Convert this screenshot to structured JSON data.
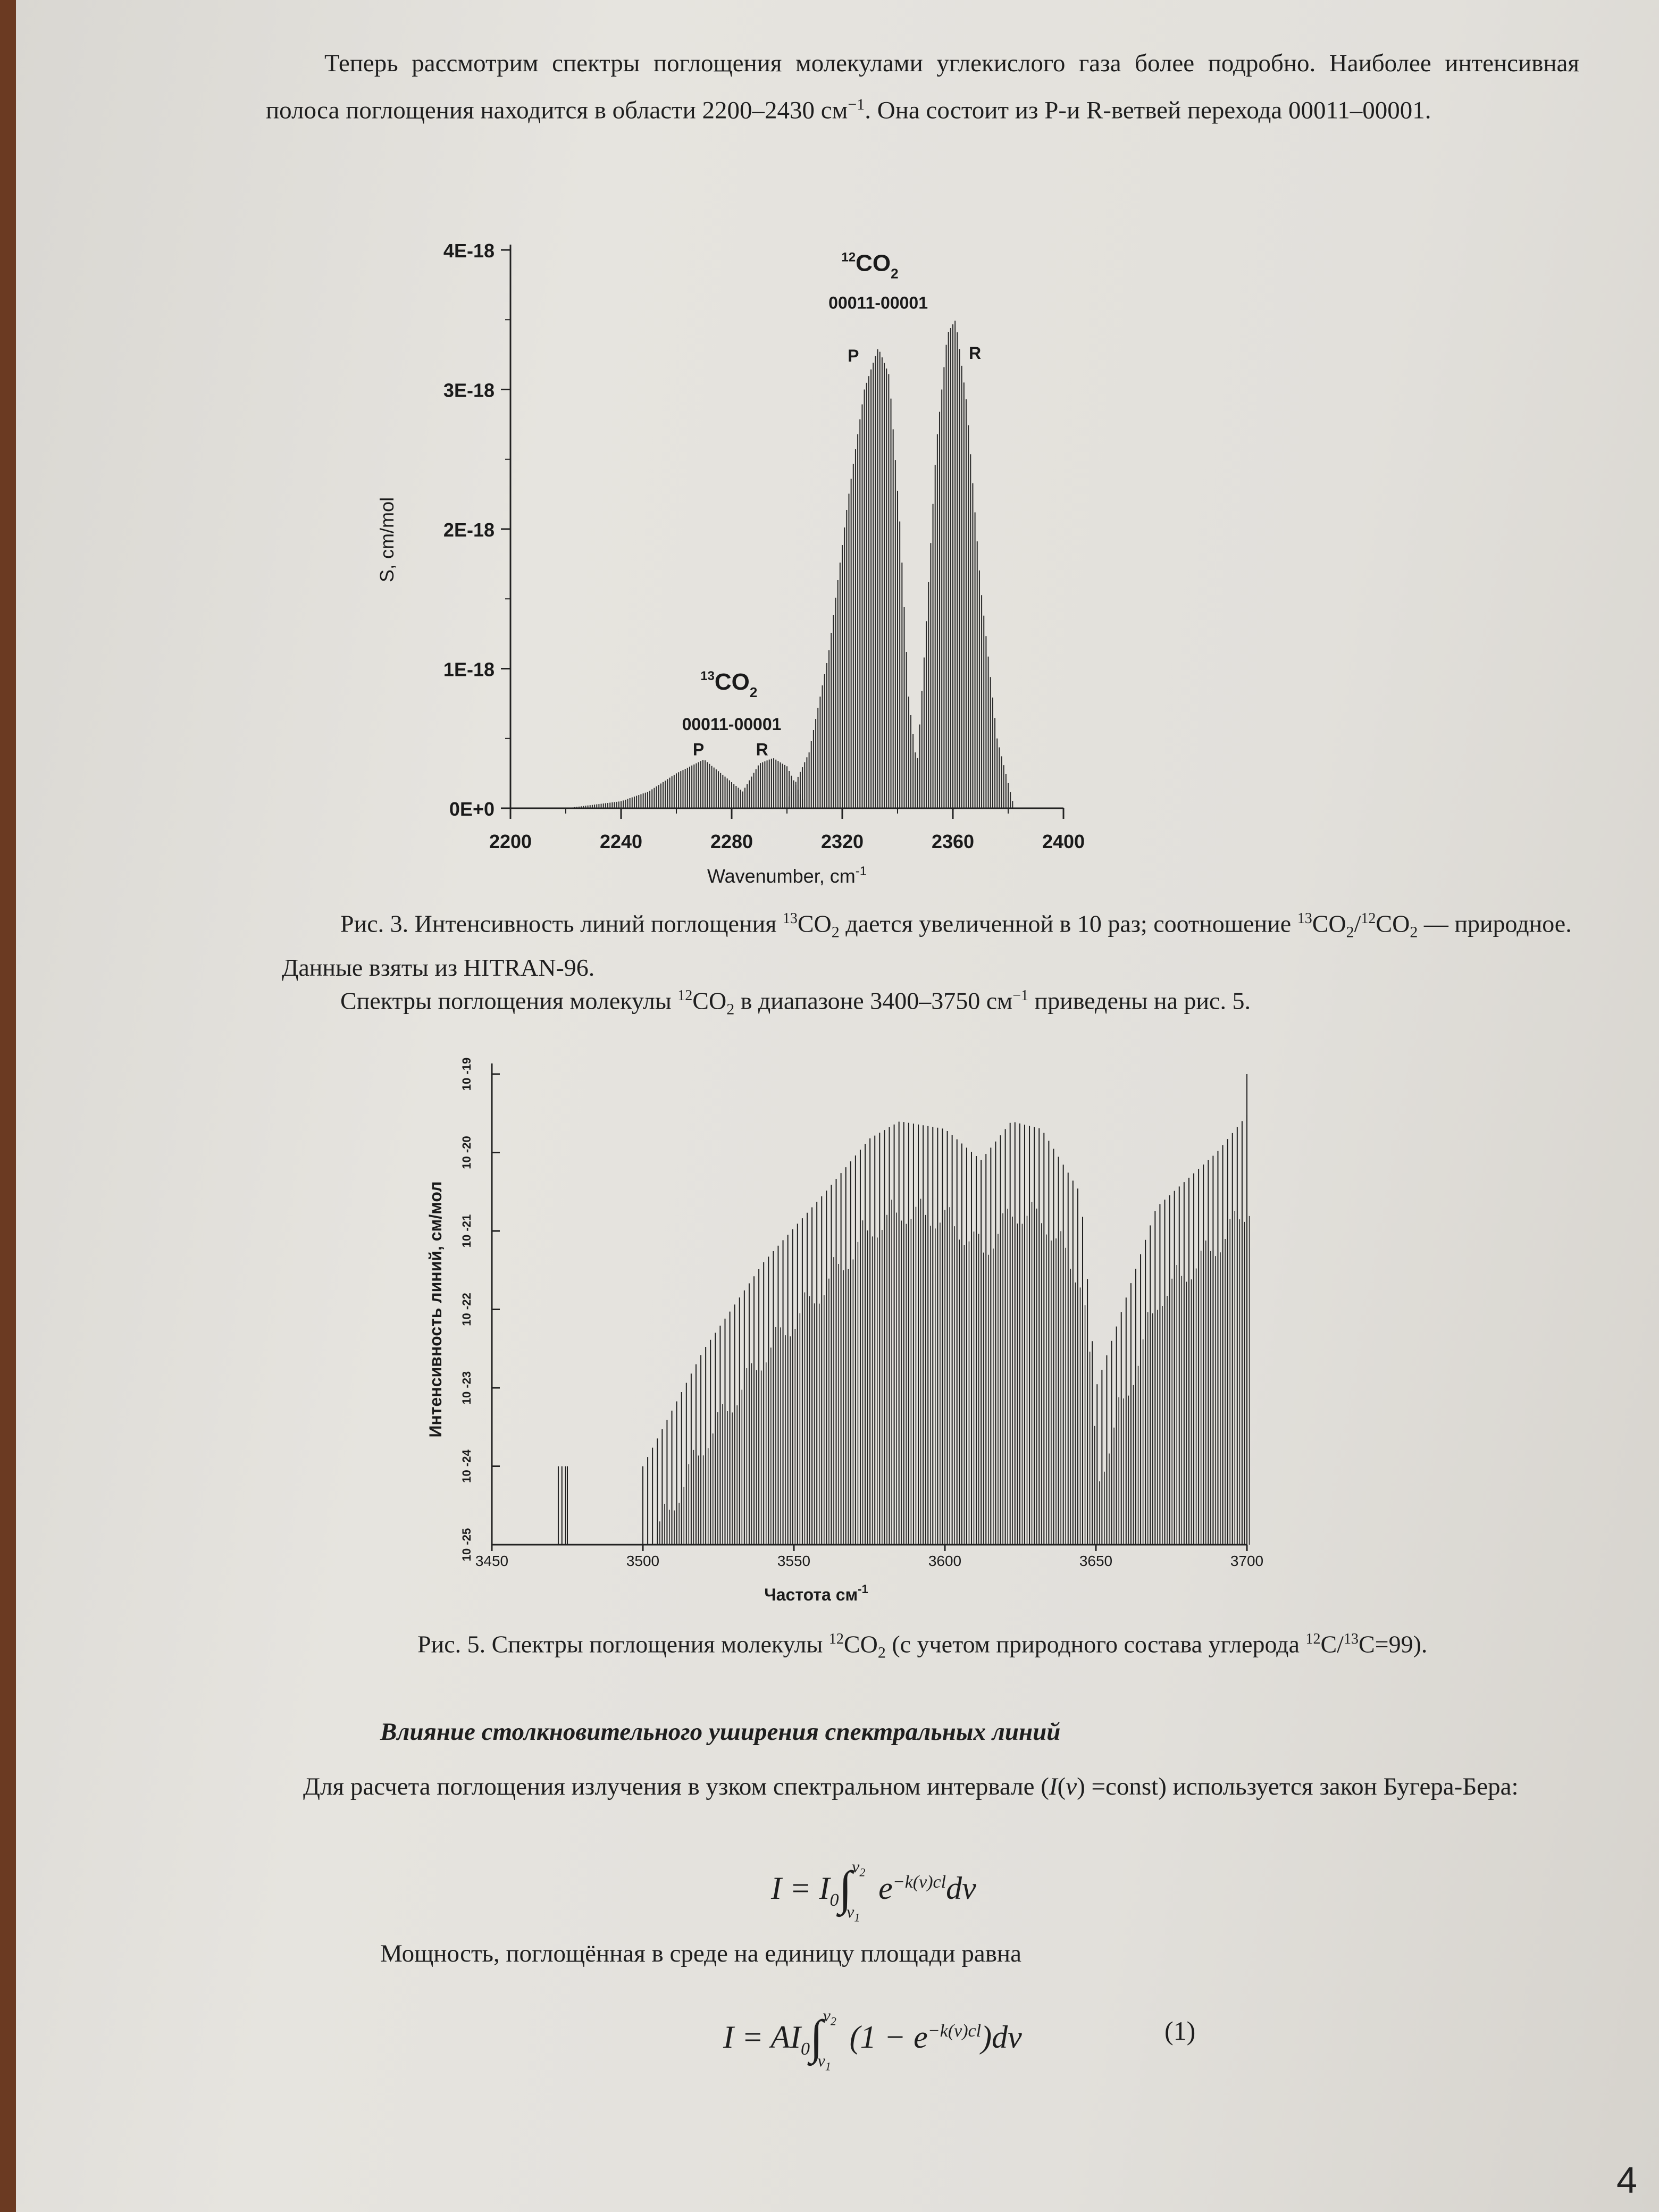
{
  "intro": {
    "pre": "Теперь рассмотрим спектры поглощения молекулами углекислого газа более подробно. Наиболее интенсивная полоса поглощения находится в области 2200–2430 см",
    "sup": "−1",
    "post": ". Она состоит из  P-и R-ветвей перехода 00011–00001."
  },
  "fig3_caption": {
    "p1": "Рис. 3. Интенсивность линий поглощения ",
    "s1": "13",
    "p2": "CO",
    "b1": "2",
    "p3": " дается увеличенной в 10 раз; соотношение ",
    "s2": "13",
    "p4": "CO",
    "b2": "2",
    "p5": "/",
    "s3": "12",
    "p6": "CO",
    "b3": "2",
    "p7": " — природное. Данные взяты из HITRAN-96."
  },
  "fig5_intro": {
    "p1": "Спектры поглощения молекулы ",
    "s1": "12",
    "p2": "CO",
    "b1": "2",
    "p3": "  в диапазоне 3400–3750 см",
    "s2": "−1",
    "p4": " приведены на рис. 5."
  },
  "fig5_caption": {
    "p1": "Рис. 5. Спектры поглощения молекулы ",
    "s1": "12",
    "p2": "CO",
    "b1": "2",
    "p3": " (с учетом природного состава углерода ",
    "s2": "12",
    "p4": "C/",
    "s3": "13",
    "p5": "C=99)."
  },
  "section_heading": "Влияние столкновительного уширения спектральных линий",
  "beer_para": {
    "p1": "Для расчета поглощения излучения в узком спектральном интервале (",
    "i1": "I",
    "p2": "(",
    "i2": "ν",
    "p3": ") =const) используется закон Бугера-Бера:"
  },
  "power_para": "Мощность, поглощённая в среде на единицу площади равна",
  "formula1": {
    "lhs": "I = I",
    "sub0": "0",
    "int": "∫",
    "up": "ν",
    "up_sub": "2",
    "lo": "ν",
    "lo_sub": "1",
    "e": "e",
    "exp": "−k(ν)cl",
    "tail": "dν"
  },
  "formula2": {
    "lhs": "I = AI",
    "sub0": "0",
    "int": "∫",
    "up": "ν",
    "up_sub": "2",
    "lo": "ν",
    "lo_sub": "1",
    "body": "(1 − e",
    "exp": "−k(ν)cl",
    "tail": ")dν",
    "number": "(1)"
  },
  "page_mark": "4",
  "chart_data": [
    {
      "type": "line",
      "title": "",
      "xlabel": "Wavenumber, cm",
      "xlabel_sup": "-1",
      "ylabel": "S,  cm/mol",
      "xlim": [
        2200,
        2400
      ],
      "ylim": [
        0,
        4e-18
      ],
      "x_ticks": [
        "2200",
        "2240",
        "2280",
        "2320",
        "2360",
        "2400"
      ],
      "y_ticks": [
        "0E+0",
        "1E-18",
        "2E-18",
        "3E-18",
        "4E-18"
      ],
      "series": [
        {
          "x": [
            2220,
            2240,
            2250,
            2260,
            2270,
            2278,
            2284,
            2290,
            2295,
            2300,
            2306
          ],
          "y": [
            0.0,
            5e-20,
            1.2e-19,
            2.5e-19,
            3.5e-19,
            2.2e-19,
            1.2e-19,
            3.2e-19,
            3.6e-19,
            3e-19,
            5e-20
          ]
        },
        {
          "x": [
            2300,
            2308,
            2315,
            2322,
            2328,
            2333,
            2337,
            2341,
            2344,
            2347,
            2350,
            2354,
            2358,
            2361,
            2365,
            2370,
            2376,
            2382
          ],
          "y": [
            5e-20,
            4e-19,
            1.1e-18,
            2.2e-18,
            3e-18,
            3.3e-18,
            3.1e-18,
            2e-18,
            8e-19,
            3e-19,
            1.2e-18,
            2.6e-18,
            3.4e-18,
            3.5e-18,
            2.9e-18,
            1.6e-18,
            5e-19,
            2e-20
          ]
        }
      ],
      "annotations": [
        {
          "text": "CO",
          "sup": "12",
          "sub": "2",
          "x": 2330,
          "y": 3.85e-18
        },
        {
          "text": "00011-00001",
          "x": 2333,
          "y": 3.58e-18
        },
        {
          "text": "P",
          "x": 2324,
          "y": 3.2e-18
        },
        {
          "text": "R",
          "x": 2368,
          "y": 3.22e-18
        },
        {
          "text": "CO",
          "sup": "13",
          "sub": "2",
          "x": 2279,
          "y": 8.5e-19
        },
        {
          "text": "00011-00001",
          "x": 2280,
          "y": 5.6e-19
        },
        {
          "text": "P",
          "x": 2268,
          "y": 3.8e-19
        },
        {
          "text": "R",
          "x": 2291,
          "y": 3.8e-19
        }
      ]
    },
    {
      "type": "line",
      "title": "",
      "xlabel": "Частота см",
      "xlabel_sup": "-1",
      "ylabel": "Интенсивность линий, см/мол",
      "y_scale": "log",
      "xlim": [
        3450,
        3700
      ],
      "ylim": [
        1e-25,
        1e-19
      ],
      "x_ticks": [
        "3450",
        "3500",
        "3550",
        "3600",
        "3650",
        "3700"
      ],
      "y_ticks": [
        "10 -25",
        "10 -24",
        "10 -23",
        "10 -22",
        "10 -21",
        "10 -20",
        "10 -19"
      ],
      "series": [
        {
          "x": [
            3472,
            3475,
            3500,
            3520,
            3540,
            3560,
            3575,
            3585,
            3600,
            3612,
            3622,
            3632,
            3645,
            3650,
            3670,
            3690,
            3700
          ],
          "y": [
            1e-24,
            1e-24,
            1e-24,
            3e-23,
            4e-22,
            3e-21,
            1.5e-20,
            2.5e-20,
            2e-20,
            8e-21,
            2.5e-20,
            2e-20,
            3e-21,
            1e-23,
            2e-21,
            1e-20,
            3e-20
          ]
        }
      ]
    }
  ]
}
